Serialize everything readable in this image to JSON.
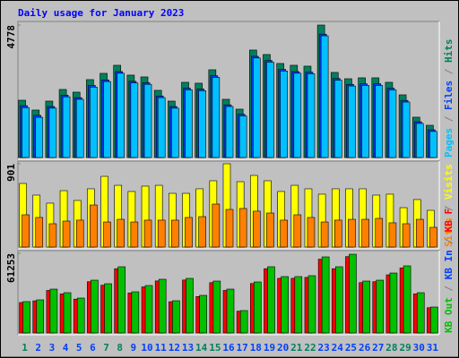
{
  "chart_data": [
    {
      "type": "bar",
      "title": "Daily usage for January 2023",
      "categories": [
        "1",
        "2",
        "3",
        "4",
        "5",
        "6",
        "7",
        "8",
        "9",
        "10",
        "11",
        "12",
        "13",
        "14",
        "15",
        "16",
        "17",
        "18",
        "19",
        "20",
        "21",
        "22",
        "23",
        "24",
        "25",
        "26",
        "27",
        "28",
        "29",
        "30",
        "31"
      ],
      "label_colors": [
        "#00805c",
        "#0040ff",
        "#0040ff",
        "#0040ff",
        "#0040ff",
        "#0040ff",
        "#00805c",
        "#00805c",
        "#0040ff",
        "#0040ff",
        "#0040ff",
        "#0040ff",
        "#0040ff",
        "#00805c",
        "#00805c",
        "#0040ff",
        "#0040ff",
        "#0040ff",
        "#0040ff",
        "#0040ff",
        "#00805c",
        "#00805c",
        "#0040ff",
        "#0040ff",
        "#0040ff",
        "#0040ff",
        "#0040ff",
        "#00805c",
        "#00805c",
        "#0040ff",
        "#0040ff"
      ],
      "ylim": [
        0,
        4778
      ],
      "yticks": [
        4778
      ],
      "series": [
        {
          "name": "Hits",
          "color": "#00805c",
          "values": [
            2067,
            1712,
            2035,
            2455,
            2358,
            2810,
            3036,
            3327,
            2972,
            2907,
            2423,
            2035,
            2713,
            2681,
            3165,
            2100,
            1744,
            3876,
            3715,
            3392,
            3327,
            3295,
            4778,
            3069,
            2842,
            2875,
            2875,
            2713,
            2261,
            1454,
            1163
          ]
        },
        {
          "name": "Files",
          "color": "#0040ff",
          "values": [
            1870,
            1520,
            1840,
            2250,
            2160,
            2600,
            2800,
            3100,
            2750,
            2700,
            2220,
            1840,
            2500,
            2470,
            2950,
            1900,
            1560,
            3650,
            3500,
            3180,
            3100,
            3080,
            4450,
            2850,
            2640,
            2660,
            2660,
            2500,
            2060,
            1290,
            1000
          ]
        },
        {
          "name": "Pages",
          "color": "#00c0ff",
          "values": [
            1800,
            1450,
            1780,
            2190,
            2100,
            2540,
            2740,
            3040,
            2690,
            2640,
            2160,
            1780,
            2440,
            2410,
            2890,
            1840,
            1500,
            3590,
            3440,
            3120,
            3040,
            3020,
            4390,
            2790,
            2580,
            2600,
            2600,
            2440,
            2000,
            1230,
            940
          ]
        }
      ]
    },
    {
      "type": "bar",
      "ylim": [
        0,
        901
      ],
      "yticks": [
        901
      ],
      "series": [
        {
          "name": "Visits",
          "color": "#ffff00",
          "values": [
            688,
            562,
            475,
            610,
            504,
            630,
            765,
            668,
            601,
            659,
            668,
            581,
            581,
            630,
            717,
            901,
            707,
            775,
            717,
            601,
            668,
            630,
            572,
            630,
            630,
            630,
            562,
            572,
            426,
            514,
            397
          ]
        },
        {
          "name": "Sites",
          "color": "#ff8000",
          "values": [
            349,
            320,
            252,
            281,
            291,
            455,
            271,
            300,
            271,
            291,
            291,
            291,
            320,
            329,
            465,
            407,
            417,
            388,
            368,
            291,
            349,
            320,
            271,
            291,
            300,
            300,
            310,
            262,
            252,
            300,
            213
          ]
        }
      ]
    },
    {
      "type": "bar",
      "ylim": [
        0,
        61253
      ],
      "yticks": [
        61253
      ],
      "series": [
        {
          "name": "KB F",
          "color": "#ff0000",
          "values": [
            23400,
            24700,
            32700,
            30000,
            26000,
            39400,
            36700,
            49400,
            30700,
            35400,
            40000,
            24000,
            40700,
            28000,
            38700,
            32700,
            16700,
            38000,
            49400,
            42000,
            42000,
            42700,
            56700,
            49400,
            58700,
            38700,
            39400,
            44700,
            50000,
            30000,
            19400
          ]
        },
        {
          "name": "KB In",
          "color": "#0040ff",
          "values": [
            0,
            0,
            0,
            0,
            0,
            0,
            0,
            0,
            0,
            0,
            0,
            0,
            0,
            0,
            0,
            0,
            0,
            0,
            0,
            0,
            0,
            0,
            0,
            0,
            0,
            0,
            0,
            0,
            0,
            0,
            0
          ]
        },
        {
          "name": "KB Out",
          "color": "#00c000",
          "values": [
            24080,
            25456,
            33712,
            30960,
            26832,
            40592,
            37840,
            50912,
            31648,
            36464,
            41280,
            24768,
            41968,
            28896,
            39904,
            33712,
            17200,
            39216,
            50912,
            43344,
            43344,
            44032,
            58480,
            50912,
            60544,
            39904,
            40592,
            46096,
            51600,
            30960,
            19952
          ]
        }
      ]
    }
  ]
}
